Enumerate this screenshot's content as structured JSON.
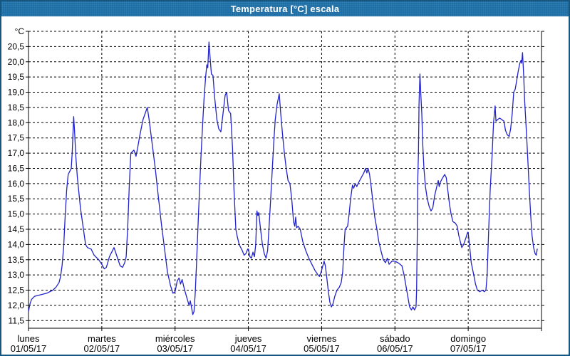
{
  "window": {
    "title": "Temperatura [°C] escala"
  },
  "colors": {
    "titlebar_bg": "#1d6ea6",
    "window_border": "#17567f",
    "line": "#2222cc",
    "grid": "#000000",
    "text": "#000000",
    "background": "#ffffff"
  },
  "chart_data": {
    "type": "line",
    "title": "Temperatura [°C] escala",
    "xlabel": "",
    "ylabel": "",
    "y_unit_label": "°C",
    "grid": "dashed-both-axes",
    "legend": "none",
    "ylim": [
      11.25,
      21.0
    ],
    "xlim_hours": [
      0,
      168
    ],
    "y_tick_values": [
      20.5,
      20.0,
      19.5,
      19.0,
      18.5,
      18.0,
      17.5,
      17.0,
      16.5,
      16.0,
      15.5,
      15.0,
      14.5,
      14.0,
      13.5,
      13.0,
      12.5,
      12.0,
      11.5
    ],
    "y_tick_labels": [
      "20,5",
      "20,0",
      "19,5",
      "19,0",
      "18,5",
      "18,0",
      "17,5",
      "17,0",
      "16,5",
      "16,0",
      "15,5",
      "15,0",
      "14,5",
      "14,0",
      "13,5",
      "13,0",
      "12,5",
      "12,0",
      "11,5"
    ],
    "x_days": [
      {
        "name": "lunes",
        "date": "01/05/17"
      },
      {
        "name": "martes",
        "date": "02/05/17"
      },
      {
        "name": "miércoles",
        "date": "03/05/17"
      },
      {
        "name": "jueves",
        "date": "04/05/17"
      },
      {
        "name": "viernes",
        "date": "05/05/17"
      },
      {
        "name": "sábado",
        "date": "06/05/17"
      },
      {
        "name": "domingo",
        "date": "07/05/17"
      }
    ],
    "series": [
      {
        "name": "Temperatura",
        "color": "#2222cc",
        "points": [
          [
            0,
            11.8
          ],
          [
            0.5,
            12.05
          ],
          [
            1,
            12.2
          ],
          [
            2,
            12.3
          ],
          [
            4,
            12.35
          ],
          [
            6,
            12.4
          ],
          [
            8,
            12.5
          ],
          [
            9,
            12.6
          ],
          [
            10,
            12.75
          ],
          [
            10.5,
            12.95
          ],
          [
            11,
            13.3
          ],
          [
            11.5,
            13.9
          ],
          [
            12,
            14.9
          ],
          [
            12.5,
            15.8
          ],
          [
            13,
            16.3
          ],
          [
            13.5,
            16.4
          ],
          [
            14,
            16.5
          ],
          [
            14.3,
            17.0
          ],
          [
            14.8,
            18.2
          ],
          [
            15.1,
            17.7
          ],
          [
            15.5,
            16.9
          ],
          [
            16,
            16.2
          ],
          [
            17,
            15.2
          ],
          [
            18,
            14.5
          ],
          [
            18.7,
            14.0
          ],
          [
            19.3,
            13.9
          ],
          [
            20.5,
            13.85
          ],
          [
            21.5,
            13.65
          ],
          [
            23,
            13.5
          ],
          [
            24,
            13.35
          ],
          [
            24.8,
            13.2
          ],
          [
            25.5,
            13.25
          ],
          [
            26.5,
            13.6
          ],
          [
            28,
            13.9
          ],
          [
            29,
            13.6
          ],
          [
            30,
            13.3
          ],
          [
            30.8,
            13.25
          ],
          [
            31.5,
            13.4
          ],
          [
            32,
            13.6
          ],
          [
            32.5,
            14.6
          ],
          [
            33,
            15.9
          ],
          [
            33.5,
            17.0
          ],
          [
            34.5,
            17.1
          ],
          [
            35.2,
            16.9
          ],
          [
            35.8,
            17.2
          ],
          [
            36.5,
            17.6
          ],
          [
            37.5,
            18.1
          ],
          [
            38.9,
            18.5
          ],
          [
            39.5,
            18.1
          ],
          [
            40.5,
            17.3
          ],
          [
            41.5,
            16.5
          ],
          [
            42.5,
            15.6
          ],
          [
            43.5,
            14.7
          ],
          [
            44.5,
            13.9
          ],
          [
            45.5,
            13.1
          ],
          [
            46.5,
            12.65
          ],
          [
            47.3,
            12.4
          ],
          [
            48,
            12.45
          ],
          [
            48.7,
            12.8
          ],
          [
            49.3,
            12.9
          ],
          [
            49.8,
            12.7
          ],
          [
            50.3,
            12.85
          ],
          [
            51,
            12.55
          ],
          [
            52,
            12.2
          ],
          [
            52.6,
            12.0
          ],
          [
            53,
            12.15
          ],
          [
            53.8,
            11.7
          ],
          [
            54.2,
            11.8
          ],
          [
            54.6,
            12.4
          ],
          [
            55,
            13.3
          ],
          [
            55.5,
            14.6
          ],
          [
            56,
            15.8
          ],
          [
            56.5,
            16.9
          ],
          [
            57,
            17.9
          ],
          [
            57.5,
            18.8
          ],
          [
            58,
            19.5
          ],
          [
            58.4,
            19.9
          ],
          [
            58.7,
            19.8
          ],
          [
            59.1,
            20.65
          ],
          [
            59.5,
            20.1
          ],
          [
            59.9,
            19.6
          ],
          [
            60.4,
            19.55
          ],
          [
            61,
            18.8
          ],
          [
            61.7,
            18.1
          ],
          [
            62.3,
            17.8
          ],
          [
            63,
            17.7
          ],
          [
            63.7,
            18.3
          ],
          [
            64.4,
            18.9
          ],
          [
            64.9,
            19.0
          ],
          [
            65.5,
            18.4
          ],
          [
            66.2,
            18.3
          ],
          [
            66.8,
            17.2
          ],
          [
            67.3,
            15.8
          ],
          [
            67.9,
            14.5
          ],
          [
            68.4,
            14.25
          ],
          [
            69,
            14.0
          ],
          [
            70,
            13.8
          ],
          [
            70.6,
            13.65
          ],
          [
            71.2,
            13.7
          ],
          [
            71.8,
            13.85
          ],
          [
            72,
            13.85
          ],
          [
            72.5,
            13.6
          ],
          [
            73,
            13.55
          ],
          [
            73.5,
            13.75
          ],
          [
            74,
            13.6
          ],
          [
            74.4,
            14.0
          ],
          [
            74.8,
            15.1
          ],
          [
            75.1,
            14.95
          ],
          [
            75.4,
            15.05
          ],
          [
            76,
            14.5
          ],
          [
            76.6,
            14.0
          ],
          [
            77.2,
            13.7
          ],
          [
            77.8,
            13.55
          ],
          [
            78.3,
            13.8
          ],
          [
            78.8,
            14.6
          ],
          [
            79.3,
            15.5
          ],
          [
            79.8,
            16.4
          ],
          [
            80.3,
            17.3
          ],
          [
            80.8,
            18.1
          ],
          [
            81.4,
            18.6
          ],
          [
            82.1,
            18.95
          ],
          [
            82.6,
            18.3
          ],
          [
            83.2,
            17.6
          ],
          [
            83.8,
            17.0
          ],
          [
            84.4,
            16.5
          ],
          [
            85,
            16.1
          ],
          [
            85.6,
            16.0
          ],
          [
            86.2,
            15.5
          ],
          [
            86.8,
            14.75
          ],
          [
            87.2,
            14.6
          ],
          [
            87.5,
            14.9
          ],
          [
            87.8,
            14.55
          ],
          [
            88.3,
            14.6
          ],
          [
            89,
            14.5
          ],
          [
            89.8,
            14.1
          ],
          [
            90.8,
            13.8
          ],
          [
            91.8,
            13.55
          ],
          [
            92.8,
            13.35
          ],
          [
            93.8,
            13.15
          ],
          [
            94.8,
            13.0
          ],
          [
            95.3,
            12.95
          ],
          [
            95.7,
            13.05
          ],
          [
            96,
            13.15
          ],
          [
            96.4,
            13.3
          ],
          [
            96.8,
            13.45
          ],
          [
            97.2,
            13.3
          ],
          [
            97.7,
            12.9
          ],
          [
            98.2,
            12.45
          ],
          [
            98.7,
            12.1
          ],
          [
            99.2,
            11.95
          ],
          [
            99.7,
            12.05
          ],
          [
            100.3,
            12.3
          ],
          [
            101,
            12.5
          ],
          [
            101.8,
            12.6
          ],
          [
            102.4,
            12.75
          ],
          [
            102.9,
            13.1
          ],
          [
            103.3,
            13.9
          ],
          [
            103.7,
            14.5
          ],
          [
            104.5,
            14.6
          ],
          [
            105,
            15.0
          ],
          [
            105.5,
            15.5
          ],
          [
            106.1,
            15.95
          ],
          [
            106.5,
            15.85
          ],
          [
            107,
            16.0
          ],
          [
            107.5,
            15.9
          ],
          [
            108.2,
            16.05
          ],
          [
            109,
            16.2
          ],
          [
            109.8,
            16.35
          ],
          [
            110.4,
            16.5
          ],
          [
            110.8,
            16.35
          ],
          [
            111.2,
            16.5
          ],
          [
            111.7,
            16.3
          ],
          [
            112.2,
            15.9
          ],
          [
            112.8,
            15.4
          ],
          [
            113.4,
            14.9
          ],
          [
            114.1,
            14.5
          ],
          [
            114.7,
            14.1
          ],
          [
            115.4,
            13.8
          ],
          [
            116.2,
            13.5
          ],
          [
            116.9,
            13.4
          ],
          [
            117.5,
            13.55
          ],
          [
            118.1,
            13.35
          ],
          [
            119,
            13.45
          ],
          [
            120,
            13.45
          ],
          [
            121,
            13.4
          ],
          [
            122.3,
            13.3
          ],
          [
            123,
            13.0
          ],
          [
            123.6,
            12.65
          ],
          [
            124.2,
            12.3
          ],
          [
            124.8,
            11.95
          ],
          [
            125.4,
            11.85
          ],
          [
            125.9,
            11.95
          ],
          [
            126.4,
            11.85
          ],
          [
            126.9,
            11.95
          ],
          [
            127.1,
            12.5
          ],
          [
            127.3,
            14.2
          ],
          [
            127.5,
            16.2
          ],
          [
            127.7,
            17.0
          ],
          [
            127.9,
            18.6
          ],
          [
            128.2,
            19.6
          ],
          [
            128.5,
            18.9
          ],
          [
            128.8,
            18.3
          ],
          [
            129.1,
            17.3
          ],
          [
            129.5,
            16.5
          ],
          [
            130,
            15.9
          ],
          [
            130.6,
            15.5
          ],
          [
            131.2,
            15.25
          ],
          [
            131.8,
            15.1
          ],
          [
            132.4,
            15.2
          ],
          [
            133,
            15.6
          ],
          [
            133.7,
            15.9
          ],
          [
            134.2,
            16.1
          ],
          [
            134.5,
            15.9
          ],
          [
            134.9,
            16.05
          ],
          [
            135.4,
            16.15
          ],
          [
            136.3,
            16.3
          ],
          [
            136.8,
            16.2
          ],
          [
            137.3,
            15.8
          ],
          [
            137.9,
            15.3
          ],
          [
            138.4,
            15.0
          ],
          [
            139,
            14.75
          ],
          [
            139.8,
            14.7
          ],
          [
            140.4,
            14.6
          ],
          [
            140.9,
            14.3
          ],
          [
            141.4,
            14.1
          ],
          [
            141.9,
            13.9
          ],
          [
            142.5,
            14.0
          ],
          [
            143.2,
            14.2
          ],
          [
            143.8,
            14.4
          ],
          [
            144,
            14.4
          ],
          [
            144.5,
            13.9
          ],
          [
            145,
            13.4
          ],
          [
            145.8,
            13.0
          ],
          [
            146.4,
            12.7
          ],
          [
            147,
            12.5
          ],
          [
            147.8,
            12.45
          ],
          [
            148.6,
            12.5
          ],
          [
            149.3,
            12.45
          ],
          [
            149.8,
            12.5
          ],
          [
            150.2,
            13.0
          ],
          [
            150.7,
            14.5
          ],
          [
            151.2,
            15.8
          ],
          [
            151.8,
            16.9
          ],
          [
            152.3,
            18.0
          ],
          [
            152.8,
            18.55
          ],
          [
            153.1,
            18.05
          ],
          [
            153.6,
            18.1
          ],
          [
            154.3,
            18.15
          ],
          [
            155,
            18.1
          ],
          [
            155.7,
            18.05
          ],
          [
            156.2,
            17.75
          ],
          [
            156.8,
            17.6
          ],
          [
            157.4,
            17.55
          ],
          [
            157.9,
            17.8
          ],
          [
            158.4,
            18.3
          ],
          [
            158.9,
            19.0
          ],
          [
            159.4,
            19.1
          ],
          [
            159.9,
            19.4
          ],
          [
            160.4,
            19.7
          ],
          [
            160.9,
            19.95
          ],
          [
            161.3,
            20.05
          ],
          [
            161.5,
            19.95
          ],
          [
            161.8,
            20.3
          ],
          [
            162.2,
            19.5
          ],
          [
            162.5,
            18.7
          ],
          [
            162.9,
            18.0
          ],
          [
            163.3,
            17.2
          ],
          [
            163.7,
            16.4
          ],
          [
            164.1,
            15.6
          ],
          [
            164.5,
            14.9
          ],
          [
            164.9,
            14.3
          ],
          [
            165.4,
            13.9
          ],
          [
            165.9,
            13.7
          ],
          [
            166.3,
            13.65
          ],
          [
            166.6,
            13.85
          ]
        ]
      }
    ]
  }
}
